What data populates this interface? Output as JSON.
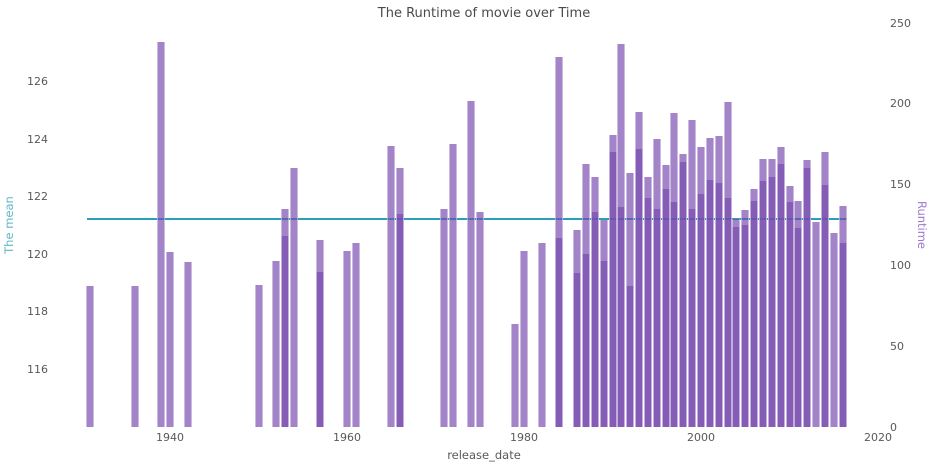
{
  "chart_data": {
    "type": "bar",
    "title": "The Runtime of movie over Time",
    "xlabel": "release_date",
    "ylabel_left": "The mean",
    "ylabel_right": "Runtime",
    "x_ticks": [
      1940,
      1960,
      1980,
      2000,
      2020
    ],
    "y_left_ticks": [
      116,
      118,
      120,
      122,
      124,
      126
    ],
    "y_right_ticks": [
      0,
      50,
      100,
      150,
      200,
      250
    ],
    "xlim": [
      1930.5,
      2020
    ],
    "ylim_left": [
      114.0,
      128.05
    ],
    "ylim_right": [
      0,
      250
    ],
    "grid": false,
    "legend": "none",
    "colors": {
      "bar_base": "#7749ae",
      "bar_alpha": 0.68,
      "bar_single_blend": "#a283c8",
      "bar_overlap_blend": "#855bb6",
      "mean_line": "#2b9fb5",
      "left_axis_label": "#62b7c7",
      "right_axis_label": "#9e77cd",
      "tick_text": "#595959",
      "title_text": "#4a4a4a"
    },
    "mean_line": {
      "axis": "left",
      "value": 121.24,
      "x_start_year": 1931,
      "x_end_year": 2016
    },
    "bars": {
      "axis": "right",
      "unit": "minutes",
      "note": "each year may have multiple translucent overlapping bars; values are bar-top readings on the right axis",
      "points": [
        {
          "year": 1931,
          "runtimes": [
            87
          ]
        },
        {
          "year": 1936,
          "runtimes": [
            87
          ]
        },
        {
          "year": 1939,
          "runtimes": [
            238
          ]
        },
        {
          "year": 1940,
          "runtimes": [
            108
          ]
        },
        {
          "year": 1942,
          "runtimes": [
            102
          ]
        },
        {
          "year": 1950,
          "runtimes": [
            88
          ]
        },
        {
          "year": 1952,
          "runtimes": [
            103
          ]
        },
        {
          "year": 1953,
          "runtimes": [
            135,
            118
          ]
        },
        {
          "year": 1954,
          "runtimes": [
            160
          ]
        },
        {
          "year": 1957,
          "runtimes": [
            116,
            96
          ]
        },
        {
          "year": 1960,
          "runtimes": [
            109
          ]
        },
        {
          "year": 1961,
          "runtimes": [
            114
          ]
        },
        {
          "year": 1965,
          "runtimes": [
            174
          ]
        },
        {
          "year": 1966,
          "runtimes": [
            160,
            132
          ]
        },
        {
          "year": 1971,
          "runtimes": [
            135
          ]
        },
        {
          "year": 1972,
          "runtimes": [
            175
          ]
        },
        {
          "year": 1974,
          "runtimes": [
            202
          ]
        },
        {
          "year": 1975,
          "runtimes": [
            133
          ]
        },
        {
          "year": 1979,
          "runtimes": [
            64
          ]
        },
        {
          "year": 1980,
          "runtimes": [
            109
          ]
        },
        {
          "year": 1982,
          "runtimes": [
            114
          ]
        },
        {
          "year": 1984,
          "runtimes": [
            229,
            117
          ]
        },
        {
          "year": 1986,
          "runtimes": [
            122,
            95
          ]
        },
        {
          "year": 1987,
          "runtimes": [
            163,
            107
          ]
        },
        {
          "year": 1988,
          "runtimes": [
            155,
            133
          ]
        },
        {
          "year": 1989,
          "runtimes": [
            128,
            103
          ]
        },
        {
          "year": 1990,
          "runtimes": [
            181,
            170
          ]
        },
        {
          "year": 1991,
          "runtimes": [
            237,
            136
          ]
        },
        {
          "year": 1992,
          "runtimes": [
            157,
            87
          ]
        },
        {
          "year": 1993,
          "runtimes": [
            195,
            172
          ]
        },
        {
          "year": 1994,
          "runtimes": [
            155,
            142
          ]
        },
        {
          "year": 1995,
          "runtimes": [
            178,
            135
          ]
        },
        {
          "year": 1996,
          "runtimes": [
            162,
            147
          ]
        },
        {
          "year": 1997,
          "runtimes": [
            194,
            139
          ]
        },
        {
          "year": 1998,
          "runtimes": [
            169,
            164
          ]
        },
        {
          "year": 1999,
          "runtimes": [
            190,
            135
          ]
        },
        {
          "year": 2000,
          "runtimes": [
            173,
            144
          ]
        },
        {
          "year": 2001,
          "runtimes": [
            179,
            153
          ]
        },
        {
          "year": 2002,
          "runtimes": [
            180,
            151
          ]
        },
        {
          "year": 2003,
          "runtimes": [
            201,
            142
          ]
        },
        {
          "year": 2004,
          "runtimes": [
            129,
            124
          ]
        },
        {
          "year": 2005,
          "runtimes": [
            134,
            125
          ]
        },
        {
          "year": 2006,
          "runtimes": [
            147,
            140
          ]
        },
        {
          "year": 2007,
          "runtimes": [
            166,
            152
          ]
        },
        {
          "year": 2008,
          "runtimes": [
            166,
            155
          ]
        },
        {
          "year": 2009,
          "runtimes": [
            173,
            163
          ]
        },
        {
          "year": 2010,
          "runtimes": [
            149,
            139
          ]
        },
        {
          "year": 2011,
          "runtimes": [
            140,
            123
          ]
        },
        {
          "year": 2012,
          "runtimes": [
            165,
            160
          ]
        },
        {
          "year": 2013,
          "runtimes": [
            127
          ]
        },
        {
          "year": 2014,
          "runtimes": [
            170,
            150
          ]
        },
        {
          "year": 2015,
          "runtimes": [
            120
          ]
        },
        {
          "year": 2016,
          "runtimes": [
            137,
            114
          ]
        }
      ]
    }
  }
}
